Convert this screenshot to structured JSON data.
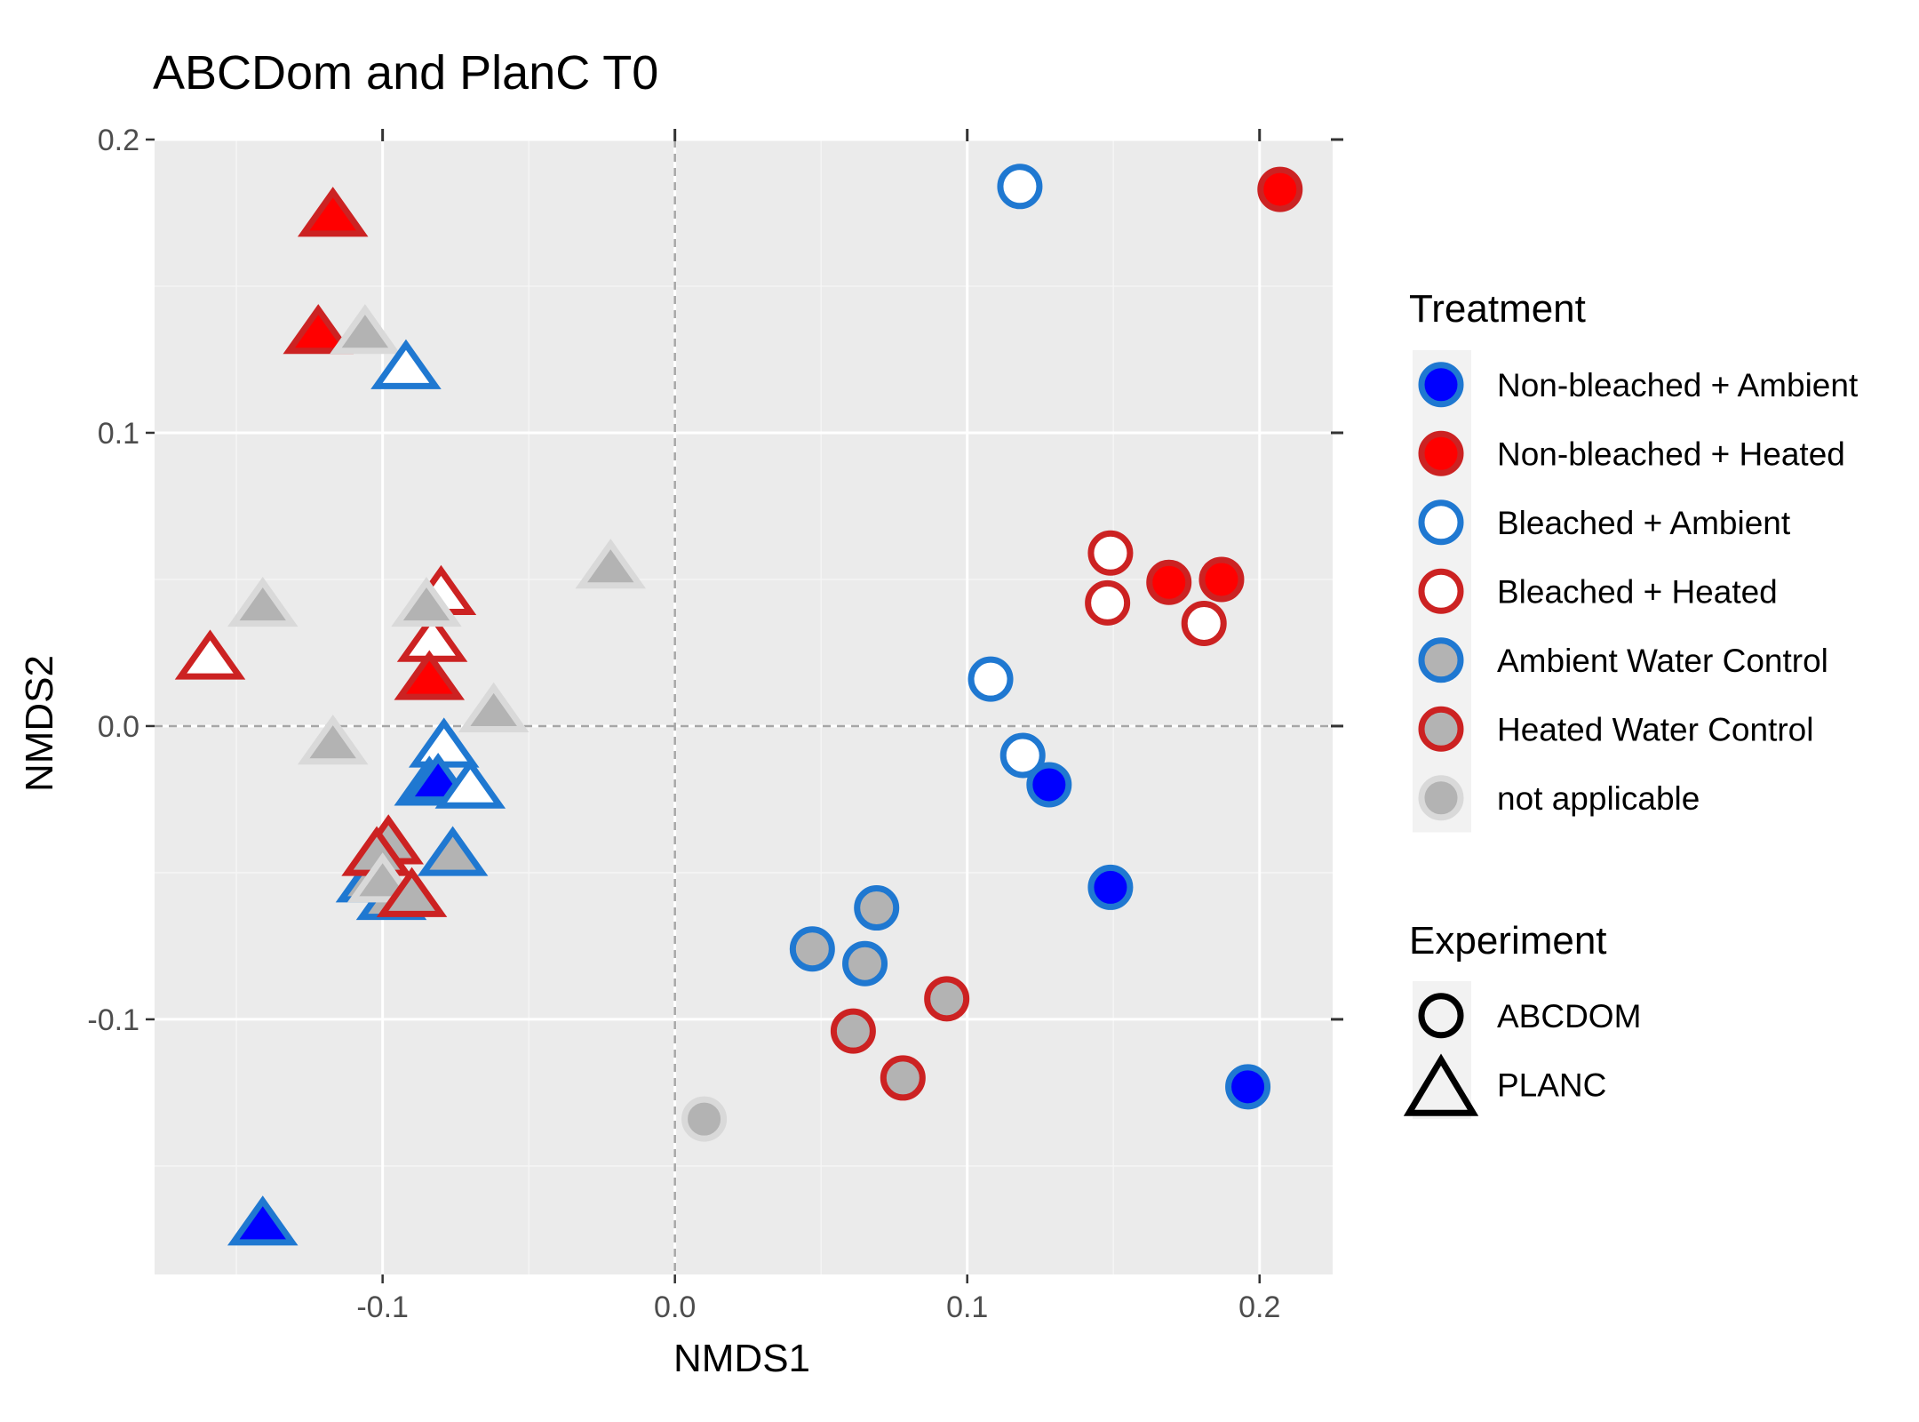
{
  "chart_data": {
    "type": "scatter",
    "title": "ABCDom and PlanC T0",
    "xlabel": "NMDS1",
    "ylabel": "NMDS2",
    "xlim": [
      -0.178,
      0.225
    ],
    "ylim": [
      -0.187,
      0.2
    ],
    "x_ticks": [
      -0.1,
      0.0,
      0.1,
      0.2
    ],
    "x_tick_labels": [
      "-0.1",
      "0.0",
      "0.1",
      "0.2"
    ],
    "y_ticks": [
      -0.1,
      0.0,
      0.1,
      0.2
    ],
    "y_tick_labels": [
      "-0.1",
      "0.0",
      "0.1",
      "0.2"
    ],
    "grid": true,
    "reference_lines": {
      "x": 0,
      "y": 0,
      "style": "dashed"
    },
    "treatments": [
      {
        "name": "Non-bleached + Ambient",
        "fill": "#0000ff",
        "stroke": "#1f78d1"
      },
      {
        "name": "Non-bleached + Heated",
        "fill": "#ff0000",
        "stroke": "#cc2222"
      },
      {
        "name": "Bleached + Ambient",
        "fill": "#ffffff",
        "stroke": "#1f78d1"
      },
      {
        "name": "Bleached + Heated",
        "fill": "#ffffff",
        "stroke": "#cc2222"
      },
      {
        "name": "Ambient Water Control",
        "fill": "#b3b3b3",
        "stroke": "#1f78d1"
      },
      {
        "name": "Heated Water Control",
        "fill": "#b3b3b3",
        "stroke": "#cc2222"
      },
      {
        "name": "not applicable",
        "fill": "#b3b3b3",
        "stroke": "#d9d9d9"
      }
    ],
    "experiments": [
      {
        "name": "ABCDOM",
        "shape": "circle"
      },
      {
        "name": "PLANC",
        "shape": "triangle"
      }
    ],
    "legend": {
      "treatment_title": "Treatment",
      "experiment_title": "Experiment",
      "position": "right"
    },
    "points": [
      {
        "x": 0.118,
        "y": 0.184,
        "t": 2,
        "s": "circle"
      },
      {
        "x": 0.207,
        "y": 0.183,
        "t": 1,
        "s": "circle"
      },
      {
        "x": 0.149,
        "y": 0.059,
        "t": 3,
        "s": "circle"
      },
      {
        "x": 0.148,
        "y": 0.042,
        "t": 3,
        "s": "circle"
      },
      {
        "x": 0.169,
        "y": 0.049,
        "t": 1,
        "s": "circle"
      },
      {
        "x": 0.187,
        "y": 0.05,
        "t": 1,
        "s": "circle"
      },
      {
        "x": 0.181,
        "y": 0.035,
        "t": 3,
        "s": "circle"
      },
      {
        "x": 0.108,
        "y": 0.016,
        "t": 2,
        "s": "circle"
      },
      {
        "x": 0.119,
        "y": -0.01,
        "t": 2,
        "s": "circle"
      },
      {
        "x": 0.128,
        "y": -0.02,
        "t": 0,
        "s": "circle"
      },
      {
        "x": 0.149,
        "y": -0.055,
        "t": 0,
        "s": "circle"
      },
      {
        "x": 0.196,
        "y": -0.123,
        "t": 0,
        "s": "circle"
      },
      {
        "x": 0.069,
        "y": -0.062,
        "t": 4,
        "s": "circle"
      },
      {
        "x": 0.047,
        "y": -0.076,
        "t": 4,
        "s": "circle"
      },
      {
        "x": 0.065,
        "y": -0.081,
        "t": 4,
        "s": "circle"
      },
      {
        "x": 0.093,
        "y": -0.093,
        "t": 5,
        "s": "circle"
      },
      {
        "x": 0.061,
        "y": -0.104,
        "t": 5,
        "s": "circle"
      },
      {
        "x": 0.078,
        "y": -0.12,
        "t": 5,
        "s": "circle"
      },
      {
        "x": 0.01,
        "y": -0.134,
        "t": 6,
        "s": "circle"
      },
      {
        "x": -0.117,
        "y": 0.175,
        "t": 1,
        "s": "triangle"
      },
      {
        "x": -0.122,
        "y": 0.135,
        "t": 1,
        "s": "triangle"
      },
      {
        "x": -0.106,
        "y": 0.135,
        "t": 6,
        "s": "triangle"
      },
      {
        "x": -0.092,
        "y": 0.123,
        "t": 2,
        "s": "triangle"
      },
      {
        "x": -0.022,
        "y": 0.055,
        "t": 6,
        "s": "triangle"
      },
      {
        "x": -0.141,
        "y": 0.042,
        "t": 6,
        "s": "triangle"
      },
      {
        "x": -0.08,
        "y": 0.046,
        "t": 3,
        "s": "triangle"
      },
      {
        "x": -0.083,
        "y": 0.03,
        "t": 3,
        "s": "triangle"
      },
      {
        "x": -0.085,
        "y": 0.042,
        "t": 6,
        "s": "triangle"
      },
      {
        "x": -0.084,
        "y": 0.017,
        "t": 1,
        "s": "triangle"
      },
      {
        "x": -0.159,
        "y": 0.024,
        "t": 3,
        "s": "triangle"
      },
      {
        "x": -0.062,
        "y": 0.006,
        "t": 6,
        "s": "triangle"
      },
      {
        "x": -0.117,
        "y": -0.005,
        "t": 6,
        "s": "triangle"
      },
      {
        "x": -0.079,
        "y": -0.006,
        "t": 2,
        "s": "triangle"
      },
      {
        "x": -0.084,
        "y": -0.019,
        "t": 0,
        "s": "triangle"
      },
      {
        "x": -0.081,
        "y": -0.018,
        "t": 0,
        "s": "triangle"
      },
      {
        "x": -0.07,
        "y": -0.02,
        "t": 2,
        "s": "triangle"
      },
      {
        "x": -0.076,
        "y": -0.043,
        "t": 4,
        "s": "triangle"
      },
      {
        "x": -0.104,
        "y": -0.052,
        "t": 4,
        "s": "triangle"
      },
      {
        "x": -0.097,
        "y": -0.058,
        "t": 4,
        "s": "triangle"
      },
      {
        "x": -0.098,
        "y": -0.039,
        "t": 5,
        "s": "triangle"
      },
      {
        "x": -0.102,
        "y": -0.043,
        "t": 5,
        "s": "triangle"
      },
      {
        "x": -0.1,
        "y": -0.052,
        "t": 6,
        "s": "triangle"
      },
      {
        "x": -0.09,
        "y": -0.057,
        "t": 5,
        "s": "triangle"
      },
      {
        "x": -0.141,
        "y": -0.169,
        "t": 0,
        "s": "triangle"
      }
    ]
  }
}
